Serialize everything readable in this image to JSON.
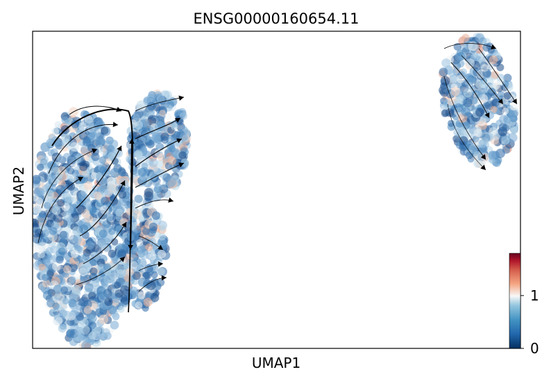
{
  "chart_data": {
    "type": "scatter",
    "title": "ENSG00000160654.11",
    "xlabel": "UMAP1",
    "ylabel": "UMAP2",
    "colorbar": {
      "colormap": "RdBu_r",
      "range": [
        0,
        1.8
      ],
      "ticks": [
        0,
        1
      ],
      "tick_labels": [
        "0",
        "1"
      ]
    },
    "x_ticks_shown": false,
    "y_ticks_shown": false,
    "grid": false,
    "overlay": "velocity streamlines with arrowheads",
    "colors": {
      "low": "#1f4f8a",
      "mid": "#f2f2f2",
      "high": "#8b0a1e",
      "stream": "#000000"
    }
  }
}
